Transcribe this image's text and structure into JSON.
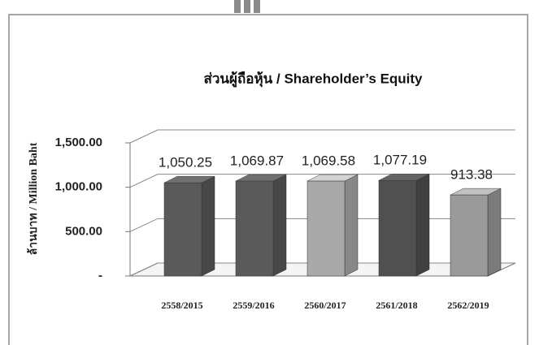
{
  "chart_data": {
    "type": "bar3d",
    "title": "ส่วนผู้ถือหุ้น / Shareholder’s Equity",
    "y_label": "ล้านบาท / Million Baht",
    "categories": [
      "2558/2015",
      "2559/2016",
      "2560/2017",
      "2561/2018",
      "2562/2019"
    ],
    "values": [
      1050.25,
      1069.87,
      1069.58,
      1077.19,
      913.38
    ],
    "value_labels": [
      "1,050.25",
      "1,069.87",
      "1,069.58",
      "1,077.19",
      "913.38"
    ],
    "colors": [
      "#5a5a5a",
      "#5a5a5a",
      "#a9a9a9",
      "#505050",
      "#9a9a9a"
    ],
    "ylim": [
      0,
      1500
    ],
    "yticks": [
      {
        "value": 0,
        "label": "-"
      },
      {
        "value": 500,
        "label": "500.00"
      },
      {
        "value": 1000,
        "label": "1,000.00"
      },
      {
        "value": 1500,
        "label": "1,500.00"
      }
    ],
    "grid": true
  }
}
